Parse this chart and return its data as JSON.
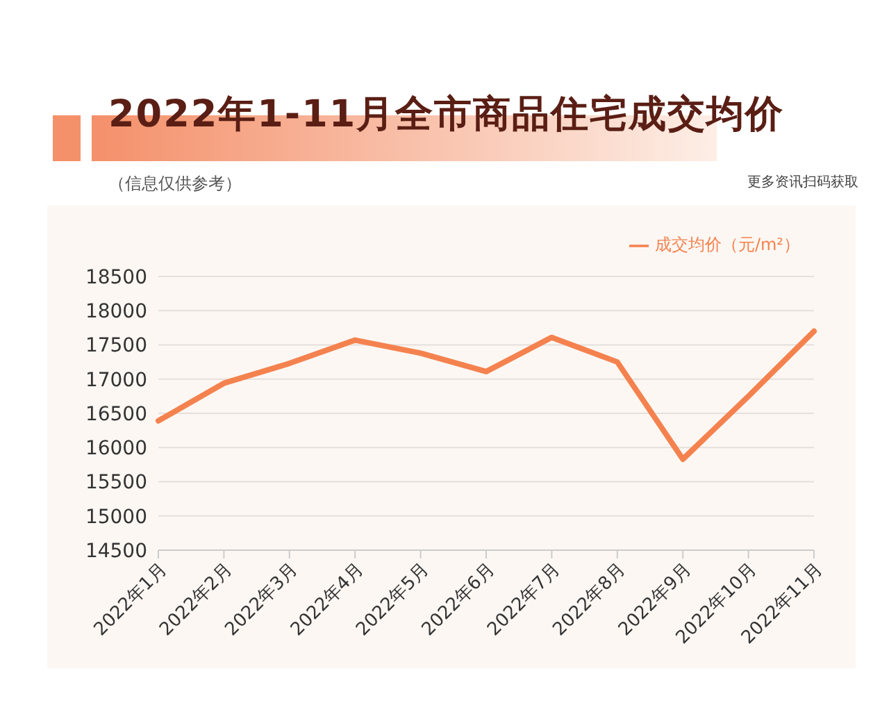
{
  "chart_data": {
    "type": "line",
    "title": "2022年1-11月全市商品住宅成交均价",
    "subtitle": "（信息仅供参考）",
    "annotations": [
      "更多资讯扫码获取"
    ],
    "categories": [
      "2022年1月",
      "2022年2月",
      "2022年3月",
      "2022年4月",
      "2022年5月",
      "2022年6月",
      "2022年7月",
      "2022年8月",
      "2022年9月",
      "2022年10月",
      "2022年11月"
    ],
    "series": [
      {
        "name": "成交均价（元/m²）",
        "color": "#f4824f",
        "values": [
          16390,
          16940,
          17230,
          17570,
          17380,
          17110,
          17610,
          17250,
          15830,
          16750,
          17700
        ]
      }
    ],
    "ylim": [
      14500,
      18500
    ],
    "yticks": [
      14500,
      15000,
      15500,
      16000,
      16500,
      17000,
      17500,
      18000,
      18500
    ],
    "grid": "y",
    "legend": "top right",
    "marker": "none",
    "line_style": "solid"
  }
}
